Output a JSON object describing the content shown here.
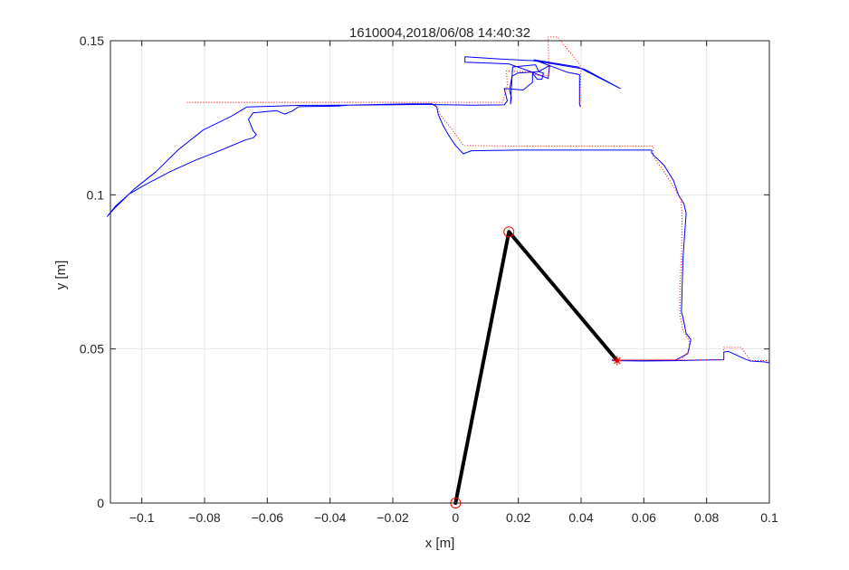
{
  "chart_data": {
    "type": "line",
    "title": "1610004,2018/06/08 14:40:32",
    "xlabel": "x [m]",
    "ylabel": "y [m]",
    "xlim": [
      -0.11,
      0.1
    ],
    "ylim": [
      0,
      0.15
    ],
    "grid": true,
    "x_ticks": [
      -0.1,
      -0.08,
      -0.06,
      -0.04,
      -0.02,
      0,
      0.02,
      0.04,
      0.06,
      0.08,
      0.1
    ],
    "x_tick_labels": [
      "−0.1",
      "−0.08",
      "−0.06",
      "−0.04",
      "−0.02",
      "0",
      "0.02",
      "0.04",
      "0.06",
      "0.08",
      "0.1"
    ],
    "y_ticks": [
      0,
      0.05,
      0.1,
      0.15
    ],
    "y_tick_labels": [
      "0",
      "0.05",
      "0.1",
      "0.15"
    ],
    "colors": {
      "actual": "#0000ff",
      "target": "#ff0000",
      "arm": "#000000",
      "grid": "#e6e6e6",
      "axes": "#262626"
    },
    "series": [
      {
        "role": "actual",
        "style": "solid",
        "points": [
          [
            0.1,
            0.0455
          ],
          [
            0.0985,
            0.0458
          ],
          [
            0.094,
            0.0461
          ],
          [
            0.0925,
            0.0466
          ],
          [
            0.087,
            0.0492
          ],
          [
            0.0855,
            0.049
          ],
          [
            0.0855,
            0.0465
          ],
          [
            0.08,
            0.0464
          ],
          [
            0.07,
            0.0462
          ],
          [
            0.06,
            0.0461
          ],
          [
            0.05,
            0.0462
          ],
          [
            0.05,
            0.0465
          ],
          [
            0.05,
            0.0462
          ],
          [
            0.06,
            0.0462
          ],
          [
            0.07,
            0.0463
          ],
          [
            0.074,
            0.0485
          ],
          [
            0.075,
            0.053
          ],
          [
            0.0735,
            0.055
          ],
          [
            0.0725,
            0.06
          ],
          [
            0.072,
            0.062
          ],
          [
            0.0722,
            0.07
          ],
          [
            0.0725,
            0.08
          ],
          [
            0.0732,
            0.09
          ],
          [
            0.0735,
            0.094
          ],
          [
            0.0728,
            0.097
          ],
          [
            0.071,
            0.1
          ],
          [
            0.0695,
            0.1045
          ],
          [
            0.0665,
            0.1095
          ],
          [
            0.0625,
            0.1135
          ],
          [
            0.0625,
            0.1145
          ],
          [
            0.05,
            0.1145
          ],
          [
            0.04,
            0.1145
          ],
          [
            0.02,
            0.1145
          ],
          [
            0.005,
            0.1143
          ],
          [
            0.0025,
            0.1133
          ],
          [
            0.0,
            0.116
          ],
          [
            -0.002,
            0.119
          ],
          [
            -0.004,
            0.1225
          ],
          [
            -0.0055,
            0.126
          ],
          [
            -0.006,
            0.1285
          ],
          [
            -0.0075,
            0.1295
          ],
          [
            -0.015,
            0.1295
          ],
          [
            -0.025,
            0.1293
          ],
          [
            -0.034,
            0.1291
          ],
          [
            -0.0375,
            0.1288
          ],
          [
            -0.05,
            0.1286
          ],
          [
            -0.052,
            0.1272
          ],
          [
            -0.0545,
            0.1262
          ],
          [
            -0.057,
            0.1273
          ],
          [
            -0.0645,
            0.1266
          ],
          [
            -0.066,
            0.1245
          ],
          [
            -0.0645,
            0.1208
          ],
          [
            -0.0635,
            0.1195
          ],
          [
            -0.0645,
            0.1185
          ],
          [
            -0.067,
            0.1178
          ],
          [
            -0.075,
            0.1144
          ],
          [
            -0.083,
            0.1112
          ],
          [
            -0.091,
            0.1075
          ],
          [
            -0.098,
            0.1038
          ],
          [
            -0.104,
            0.1003
          ],
          [
            -0.1085,
            0.0962
          ],
          [
            -0.111,
            0.093
          ],
          [
            -0.1085,
            0.0958
          ],
          [
            -0.1025,
            0.1018
          ],
          [
            -0.0955,
            0.1075
          ],
          [
            -0.0885,
            0.1145
          ],
          [
            -0.0805,
            0.121
          ],
          [
            -0.0715,
            0.1255
          ],
          [
            -0.0665,
            0.1285
          ],
          [
            -0.05,
            0.129
          ],
          [
            -0.035,
            0.1291
          ],
          [
            -0.01,
            0.1293
          ],
          [
            0.005,
            0.1291
          ],
          [
            0.0155,
            0.1292
          ],
          [
            0.0165,
            0.1305
          ],
          [
            0.0155,
            0.1345
          ],
          [
            0.0215,
            0.134
          ],
          [
            0.0245,
            0.1365
          ],
          [
            0.0245,
            0.1395
          ],
          [
            0.026,
            0.1375
          ],
          [
            0.0275,
            0.1375
          ],
          [
            0.028,
            0.1395
          ],
          [
            0.0265,
            0.14
          ],
          [
            0.0198,
            0.1395
          ],
          [
            0.018,
            0.1385
          ],
          [
            0.0172,
            0.134
          ],
          [
            0.0178,
            0.1315
          ],
          [
            0.0175,
            0.1295
          ],
          [
            0.0182,
            0.1415
          ],
          [
            0.0255,
            0.1422
          ],
          [
            0.0265,
            0.14
          ],
          [
            0.03,
            0.142
          ],
          [
            0.0295,
            0.1378
          ],
          [
            0.023,
            0.1403
          ],
          [
            0.017,
            0.1425
          ],
          [
            0.003,
            0.143
          ],
          [
            0.003,
            0.1448
          ],
          [
            0.015,
            0.144
          ],
          [
            0.025,
            0.1435
          ],
          [
            0.035,
            0.1418
          ],
          [
            0.041,
            0.1408
          ],
          [
            0.0525,
            0.1345
          ],
          [
            0.039,
            0.1415
          ],
          [
            0.025,
            0.1438
          ],
          [
            0.0355,
            0.1398
          ],
          [
            0.0395,
            0.139
          ],
          [
            0.0395,
            0.1295
          ],
          [
            0.0398,
            0.1285
          ]
        ]
      },
      {
        "role": "target",
        "style": "dotted",
        "points": [
          [
            0.1,
            0.0462
          ],
          [
            0.094,
            0.0462
          ],
          [
            0.091,
            0.0505
          ],
          [
            0.0855,
            0.0505
          ],
          [
            0.0855,
            0.0465
          ],
          [
            0.07,
            0.0464
          ],
          [
            0.05,
            0.0464
          ],
          [
            0.05,
            0.0466
          ],
          [
            0.072,
            0.0466
          ],
          [
            0.0745,
            0.0495
          ],
          [
            0.0745,
            0.0525
          ],
          [
            0.0725,
            0.056
          ],
          [
            0.0715,
            0.061
          ],
          [
            0.0715,
            0.07
          ],
          [
            0.072,
            0.08
          ],
          [
            0.0722,
            0.093
          ],
          [
            0.0718,
            0.0985
          ],
          [
            0.0695,
            0.1025
          ],
          [
            0.0665,
            0.1075
          ],
          [
            0.063,
            0.1125
          ],
          [
            0.063,
            0.1158
          ],
          [
            0.05,
            0.1158
          ],
          [
            0.035,
            0.1158
          ],
          [
            0.02,
            0.1158
          ],
          [
            0.0025,
            0.116
          ],
          [
            -0.001,
            0.121
          ],
          [
            -0.005,
            0.1262
          ],
          [
            -0.0065,
            0.13
          ],
          [
            -0.04,
            0.13
          ],
          [
            -0.07,
            0.13
          ],
          [
            -0.0855,
            0.13
          ],
          [
            -0.06,
            0.13
          ],
          [
            -0.02,
            0.13
          ],
          [
            0.015,
            0.13
          ],
          [
            0.0165,
            0.1355
          ],
          [
            0.0162,
            0.1402
          ],
          [
            0.0238,
            0.1398
          ],
          [
            0.0258,
            0.1388
          ],
          [
            0.0297,
            0.1388
          ],
          [
            0.0295,
            0.1512
          ],
          [
            0.0325,
            0.1512
          ],
          [
            0.0395,
            0.1425
          ],
          [
            0.04,
            0.1412
          ],
          [
            0.0395,
            0.129
          ],
          [
            0.04,
            0.1288
          ]
        ]
      }
    ],
    "arm": {
      "points": [
        [
          0,
          0
        ],
        [
          0.017,
          0.088
        ],
        [
          0.0515,
          0.0462
        ]
      ],
      "joint_markers": [
        [
          0,
          0
        ],
        [
          0.017,
          0.088
        ]
      ],
      "end_marker": [
        0.0515,
        0.0462
      ]
    }
  }
}
